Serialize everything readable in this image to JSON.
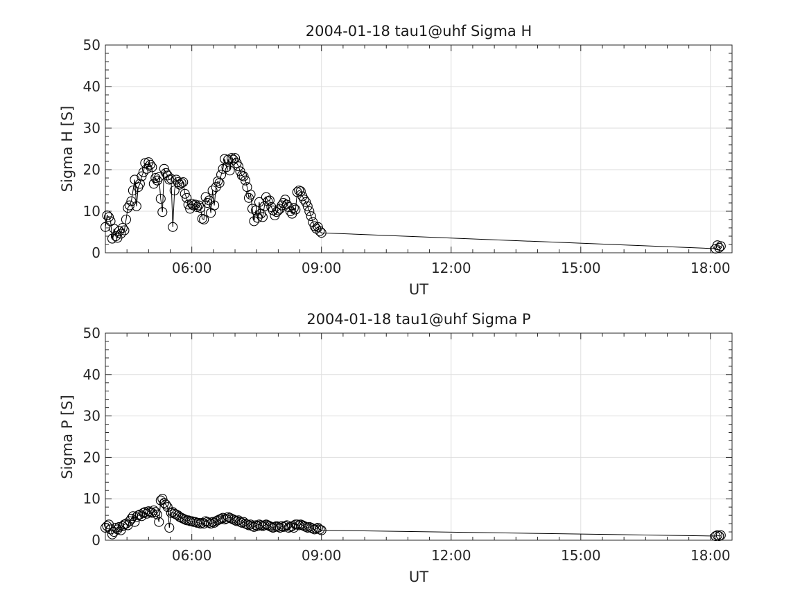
{
  "chart_data": [
    {
      "type": "line",
      "title": "2004-01-18  tau1@uhf Sigma H",
      "xlabel": "UT",
      "ylabel": "Sigma H [S]",
      "xlim": [
        4.0,
        18.5
      ],
      "ylim": [
        0,
        50
      ],
      "xticks": [
        6,
        9,
        12,
        15,
        18
      ],
      "xtick_labels": [
        "06:00",
        "09:00",
        "12:00",
        "15:00",
        "18:00"
      ],
      "yticks": [
        0,
        10,
        20,
        30,
        40,
        50
      ],
      "ytick_labels": [
        "0",
        "10",
        "20",
        "30",
        "40",
        "50"
      ],
      "grid": true,
      "marker": "open-circle",
      "series": [
        {
          "x": [
            4.0,
            4.04,
            4.08,
            4.12,
            4.16,
            4.2,
            4.24,
            4.28,
            4.32,
            4.36,
            4.4,
            4.44,
            4.48,
            4.52,
            4.56,
            4.6,
            4.64,
            4.68,
            4.72,
            4.76,
            4.8,
            4.84,
            4.88,
            4.92,
            4.96,
            5.0,
            5.04,
            5.08,
            5.12,
            5.16,
            5.2,
            5.24,
            5.28,
            5.32,
            5.36,
            5.4,
            5.44,
            5.48,
            5.52,
            5.56,
            5.6,
            5.64,
            5.68,
            5.72,
            5.76,
            5.8,
            5.84,
            5.88,
            5.92,
            5.96,
            6.0,
            6.04,
            6.08,
            6.12,
            6.16,
            6.2,
            6.24,
            6.28,
            6.32,
            6.36,
            6.4,
            6.44,
            6.48,
            6.52,
            6.56,
            6.6,
            6.64,
            6.68,
            6.72,
            6.76,
            6.8,
            6.84,
            6.88,
            6.92,
            6.96,
            7.0,
            7.04,
            7.08,
            7.12,
            7.16,
            7.2,
            7.24,
            7.28,
            7.32,
            7.36,
            7.4,
            7.44,
            7.48,
            7.52,
            7.56,
            7.6,
            7.64,
            7.68,
            7.72,
            7.76,
            7.8,
            7.84,
            7.88,
            7.92,
            7.96,
            8.0,
            8.04,
            8.08,
            8.12,
            8.16,
            8.2,
            8.24,
            8.28,
            8.32,
            8.36,
            8.4,
            8.44,
            8.48,
            8.52,
            8.56,
            8.6,
            8.64,
            8.68,
            8.72,
            8.76,
            8.8,
            8.84,
            8.88,
            8.92,
            8.96,
            9.0,
            18.12,
            18.16,
            18.2,
            18.24
          ],
          "y": [
            6.2,
            9.0,
            8.6,
            7.6,
            3.4,
            5.8,
            4.0,
            3.6,
            5.2,
            4.6,
            6.0,
            5.4,
            8.0,
            10.8,
            11.4,
            12.4,
            15.0,
            17.6,
            11.2,
            15.8,
            16.6,
            18.4,
            19.4,
            21.6,
            20.2,
            21.8,
            21.2,
            20.6,
            16.6,
            18.0,
            17.4,
            18.2,
            13.0,
            9.8,
            20.2,
            19.2,
            18.6,
            17.6,
            17.8,
            6.2,
            15.0,
            17.6,
            17.0,
            16.4,
            16.8,
            17.0,
            14.2,
            13.2,
            11.6,
            10.6,
            11.8,
            11.4,
            11.6,
            11.0,
            11.4,
            10.8,
            8.2,
            8.0,
            13.4,
            12.0,
            12.6,
            9.6,
            15.0,
            11.4,
            15.8,
            17.2,
            16.8,
            18.8,
            20.2,
            22.6,
            20.6,
            22.4,
            19.8,
            22.8,
            22.4,
            22.8,
            21.6,
            20.8,
            19.6,
            18.6,
            18.4,
            17.4,
            15.8,
            13.2,
            14.0,
            10.6,
            7.6,
            10.2,
            8.4,
            12.2,
            9.4,
            8.6,
            11.2,
            13.4,
            12.4,
            12.6,
            11.0,
            10.2,
            9.0,
            9.8,
            10.2,
            10.6,
            11.4,
            12.0,
            12.8,
            11.6,
            11.0,
            10.0,
            9.4,
            10.8,
            10.4,
            14.6,
            15.0,
            14.8,
            13.6,
            12.8,
            12.2,
            11.2,
            10.0,
            8.8,
            7.4,
            6.4,
            5.8,
            6.2,
            5.2,
            4.8,
            1.0,
            1.8,
            1.2,
            1.6
          ]
        }
      ]
    },
    {
      "type": "line",
      "title": "2004-01-18  tau1@uhf Sigma P",
      "xlabel": "UT",
      "ylabel": "Sigma P [S]",
      "xlim": [
        4.0,
        18.5
      ],
      "ylim": [
        0,
        50
      ],
      "xticks": [
        6,
        9,
        12,
        15,
        18
      ],
      "xtick_labels": [
        "06:00",
        "09:00",
        "12:00",
        "15:00",
        "18:00"
      ],
      "yticks": [
        0,
        10,
        20,
        30,
        40,
        50
      ],
      "ytick_labels": [
        "0",
        "10",
        "20",
        "30",
        "40",
        "50"
      ],
      "grid": true,
      "marker": "open-circle",
      "series": [
        {
          "x": [
            4.0,
            4.04,
            4.08,
            4.12,
            4.16,
            4.2,
            4.24,
            4.28,
            4.32,
            4.36,
            4.4,
            4.44,
            4.48,
            4.52,
            4.56,
            4.6,
            4.64,
            4.68,
            4.72,
            4.76,
            4.8,
            4.84,
            4.88,
            4.92,
            4.96,
            5.0,
            5.04,
            5.08,
            5.12,
            5.16,
            5.2,
            5.24,
            5.28,
            5.32,
            5.36,
            5.4,
            5.44,
            5.48,
            5.52,
            5.56,
            5.6,
            5.64,
            5.68,
            5.72,
            5.76,
            5.8,
            5.84,
            5.88,
            5.92,
            5.96,
            6.0,
            6.04,
            6.08,
            6.12,
            6.16,
            6.2,
            6.24,
            6.28,
            6.32,
            6.36,
            6.4,
            6.44,
            6.48,
            6.52,
            6.56,
            6.6,
            6.64,
            6.68,
            6.72,
            6.76,
            6.8,
            6.84,
            6.88,
            6.92,
            6.96,
            7.0,
            7.04,
            7.08,
            7.12,
            7.16,
            7.2,
            7.24,
            7.28,
            7.32,
            7.36,
            7.4,
            7.44,
            7.48,
            7.52,
            7.56,
            7.6,
            7.64,
            7.68,
            7.72,
            7.76,
            7.8,
            7.84,
            7.88,
            7.92,
            7.96,
            8.0,
            8.04,
            8.08,
            8.12,
            8.16,
            8.2,
            8.24,
            8.28,
            8.32,
            8.36,
            8.4,
            8.44,
            8.48,
            8.52,
            8.56,
            8.6,
            8.64,
            8.68,
            8.72,
            8.76,
            8.8,
            8.84,
            8.88,
            8.92,
            8.96,
            9.0,
            18.12,
            18.16,
            18.2,
            18.24
          ],
          "y": [
            3.0,
            3.4,
            3.8,
            2.6,
            1.4,
            2.0,
            3.0,
            2.6,
            3.2,
            2.4,
            3.4,
            3.8,
            4.0,
            3.6,
            4.6,
            5.2,
            5.8,
            4.4,
            5.6,
            6.0,
            6.2,
            5.8,
            6.6,
            6.8,
            6.4,
            7.0,
            6.8,
            6.6,
            7.2,
            6.8,
            6.2,
            4.4,
            9.6,
            10.0,
            9.0,
            8.6,
            8.0,
            3.0,
            6.6,
            6.8,
            6.4,
            6.2,
            6.0,
            5.6,
            5.4,
            5.2,
            5.0,
            4.8,
            4.8,
            4.6,
            4.6,
            4.4,
            4.4,
            4.2,
            4.2,
            4.0,
            4.2,
            4.0,
            4.6,
            4.4,
            4.2,
            4.0,
            4.4,
            4.2,
            4.6,
            4.8,
            5.0,
            5.2,
            5.4,
            5.0,
            5.2,
            5.6,
            5.4,
            5.2,
            5.0,
            4.8,
            4.6,
            4.8,
            4.4,
            4.2,
            4.4,
            4.0,
            3.8,
            3.6,
            3.8,
            3.4,
            3.2,
            3.6,
            3.4,
            3.8,
            3.6,
            3.4,
            3.6,
            3.8,
            3.6,
            3.4,
            3.2,
            3.0,
            3.2,
            3.4,
            3.2,
            3.0,
            3.4,
            3.2,
            3.4,
            3.6,
            3.0,
            3.2,
            3.4,
            3.0,
            3.8,
            3.8,
            3.6,
            3.8,
            3.6,
            3.4,
            3.2,
            3.0,
            3.2,
            3.0,
            2.8,
            2.6,
            2.8,
            3.0,
            2.6,
            2.4,
            1.0,
            1.2,
            1.0,
            1.2
          ]
        }
      ]
    }
  ]
}
